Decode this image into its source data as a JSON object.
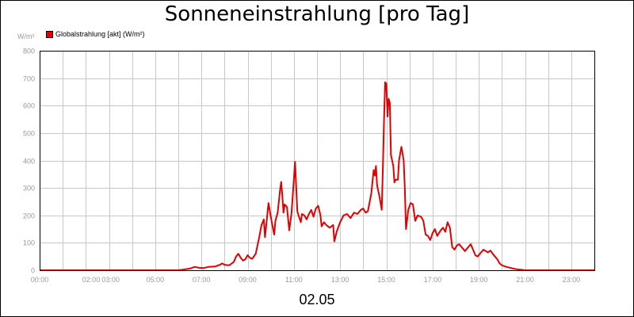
{
  "chart_data": {
    "type": "line",
    "title": "Sonneneinstrahlung [pro Tag]",
    "ylabel": "W/m²",
    "xlabel": "02.05",
    "ylim": [
      0,
      800
    ],
    "xlim": [
      0,
      24
    ],
    "yticks": [
      "0",
      "100",
      "200",
      "300",
      "400",
      "500",
      "600",
      "700",
      "800"
    ],
    "xticks": [
      {
        "t": 0,
        "label": "00:00"
      },
      {
        "t": 2,
        "label": "02:00"
      },
      {
        "t": 3,
        "label": "03:00"
      },
      {
        "t": 5,
        "label": "05:00"
      },
      {
        "t": 7,
        "label": "07:00"
      },
      {
        "t": 9,
        "label": "09:00"
      },
      {
        "t": 11,
        "label": "11:00"
      },
      {
        "t": 13,
        "label": "13:00"
      },
      {
        "t": 15,
        "label": "15:00"
      },
      {
        "t": 17,
        "label": "17:00"
      },
      {
        "t": 19,
        "label": "19:00"
      },
      {
        "t": 21,
        "label": "21:00"
      },
      {
        "t": 23,
        "label": "23:00"
      }
    ],
    "grid": true,
    "legend_position": "top-left",
    "series": [
      {
        "name": "Globalstrahlung [akt] (W/m²)",
        "color": "#e00000",
        "points": [
          [
            0,
            0
          ],
          [
            6.0,
            0
          ],
          [
            6.2,
            2
          ],
          [
            6.5,
            6
          ],
          [
            6.7,
            12
          ],
          [
            6.9,
            9
          ],
          [
            7.1,
            8
          ],
          [
            7.3,
            12
          ],
          [
            7.6,
            14
          ],
          [
            7.8,
            20
          ],
          [
            7.9,
            25
          ],
          [
            8.0,
            20
          ],
          [
            8.2,
            18
          ],
          [
            8.4,
            30
          ],
          [
            8.5,
            50
          ],
          [
            8.6,
            60
          ],
          [
            8.7,
            45
          ],
          [
            8.8,
            35
          ],
          [
            8.9,
            40
          ],
          [
            9.0,
            55
          ],
          [
            9.1,
            45
          ],
          [
            9.2,
            42
          ],
          [
            9.35,
            60
          ],
          [
            9.5,
            120
          ],
          [
            9.6,
            165
          ],
          [
            9.7,
            185
          ],
          [
            9.75,
            120
          ],
          [
            9.8,
            160
          ],
          [
            9.9,
            245
          ],
          [
            10.0,
            195
          ],
          [
            10.1,
            150
          ],
          [
            10.15,
            130
          ],
          [
            10.2,
            180
          ],
          [
            10.3,
            210
          ],
          [
            10.4,
            290
          ],
          [
            10.45,
            322
          ],
          [
            10.5,
            270
          ],
          [
            10.55,
            210
          ],
          [
            10.6,
            240
          ],
          [
            10.7,
            230
          ],
          [
            10.8,
            145
          ],
          [
            10.9,
            210
          ],
          [
            11.0,
            330
          ],
          [
            11.05,
            395
          ],
          [
            11.1,
            300
          ],
          [
            11.15,
            215
          ],
          [
            11.2,
            200
          ],
          [
            11.3,
            175
          ],
          [
            11.35,
            205
          ],
          [
            11.45,
            200
          ],
          [
            11.55,
            185
          ],
          [
            11.65,
            205
          ],
          [
            11.75,
            220
          ],
          [
            11.85,
            195
          ],
          [
            11.95,
            225
          ],
          [
            12.05,
            235
          ],
          [
            12.15,
            200
          ],
          [
            12.2,
            160
          ],
          [
            12.3,
            175
          ],
          [
            12.4,
            165
          ],
          [
            12.55,
            155
          ],
          [
            12.7,
            165
          ],
          [
            12.75,
            105
          ],
          [
            12.85,
            140
          ],
          [
            13.0,
            175
          ],
          [
            13.15,
            200
          ],
          [
            13.3,
            205
          ],
          [
            13.45,
            190
          ],
          [
            13.6,
            210
          ],
          [
            13.75,
            205
          ],
          [
            13.9,
            220
          ],
          [
            14.0,
            225
          ],
          [
            14.1,
            210
          ],
          [
            14.2,
            215
          ],
          [
            14.35,
            280
          ],
          [
            14.45,
            365
          ],
          [
            14.5,
            345
          ],
          [
            14.55,
            380
          ],
          [
            14.6,
            310
          ],
          [
            14.7,
            270
          ],
          [
            14.8,
            220
          ],
          [
            14.85,
            370
          ],
          [
            14.9,
            550
          ],
          [
            14.95,
            685
          ],
          [
            15.0,
            680
          ],
          [
            15.05,
            560
          ],
          [
            15.1,
            625
          ],
          [
            15.15,
            610
          ],
          [
            15.2,
            420
          ],
          [
            15.3,
            380
          ],
          [
            15.35,
            320
          ],
          [
            15.4,
            330
          ],
          [
            15.5,
            330
          ],
          [
            15.55,
            400
          ],
          [
            15.65,
            450
          ],
          [
            15.75,
            400
          ],
          [
            15.8,
            300
          ],
          [
            15.85,
            150
          ],
          [
            15.95,
            220
          ],
          [
            16.05,
            245
          ],
          [
            16.15,
            240
          ],
          [
            16.25,
            180
          ],
          [
            16.35,
            200
          ],
          [
            16.5,
            195
          ],
          [
            16.6,
            180
          ],
          [
            16.7,
            130
          ],
          [
            16.8,
            125
          ],
          [
            16.9,
            110
          ],
          [
            17.0,
            135
          ],
          [
            17.1,
            150
          ],
          [
            17.2,
            125
          ],
          [
            17.35,
            145
          ],
          [
            17.45,
            155
          ],
          [
            17.55,
            140
          ],
          [
            17.65,
            175
          ],
          [
            17.75,
            155
          ],
          [
            17.85,
            85
          ],
          [
            17.95,
            75
          ],
          [
            18.05,
            90
          ],
          [
            18.15,
            95
          ],
          [
            18.3,
            80
          ],
          [
            18.4,
            70
          ],
          [
            18.5,
            80
          ],
          [
            18.65,
            95
          ],
          [
            18.75,
            75
          ],
          [
            18.85,
            55
          ],
          [
            18.95,
            50
          ],
          [
            19.05,
            60
          ],
          [
            19.2,
            75
          ],
          [
            19.3,
            70
          ],
          [
            19.4,
            65
          ],
          [
            19.5,
            72
          ],
          [
            19.6,
            60
          ],
          [
            19.7,
            50
          ],
          [
            19.8,
            40
          ],
          [
            19.9,
            25
          ],
          [
            20.0,
            18
          ],
          [
            20.2,
            12
          ],
          [
            20.4,
            8
          ],
          [
            20.6,
            4
          ],
          [
            20.8,
            2
          ],
          [
            21.0,
            0
          ],
          [
            24,
            0
          ]
        ]
      }
    ]
  }
}
